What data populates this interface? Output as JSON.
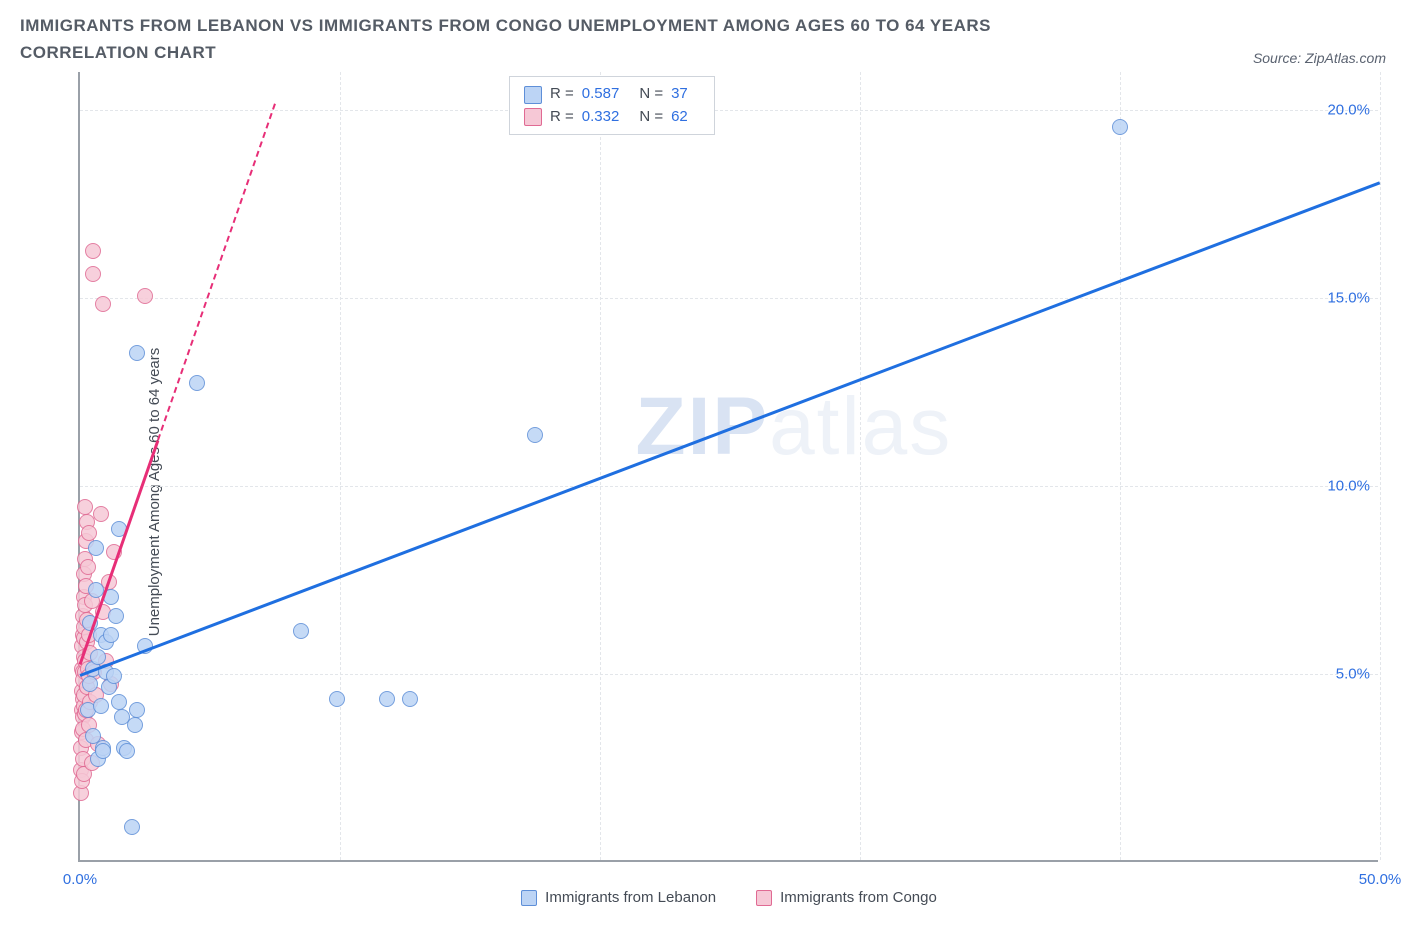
{
  "title": "IMMIGRANTS FROM LEBANON VS IMMIGRANTS FROM CONGO UNEMPLOYMENT AMONG AGES 60 TO 64 YEARS CORRELATION CHART",
  "source_label": "Source: ZipAtlas.com",
  "watermark": {
    "zip": "ZIP",
    "atlas": "atlas"
  },
  "chart": {
    "type": "scatter",
    "ylabel": "Unemployment Among Ages 60 to 64 years",
    "xlim": [
      0,
      50
    ],
    "ylim": [
      0,
      21
    ],
    "xticks": [
      0,
      50
    ],
    "xtick_labels": [
      "0.0%",
      "50.0%"
    ],
    "xgrid_at": [
      10,
      20,
      30,
      40,
      50
    ],
    "yticks": [
      5,
      10,
      15,
      20
    ],
    "ytick_labels": [
      "5.0%",
      "10.0%",
      "15.0%",
      "20.0%"
    ],
    "background_color": "#ffffff",
    "grid_color": "#e3e6ea",
    "axis_color": "#9aa0a8",
    "marker_radius": 8,
    "marker_stroke_width": 1.3,
    "series": [
      {
        "name": "Immigrants from Lebanon",
        "fill": "#bcd4f5",
        "stroke": "#5e8fd8",
        "R": "0.587",
        "N": "37",
        "trend": {
          "x1": 0,
          "y1": 5.0,
          "x2": 50,
          "y2": 18.1,
          "solid_to_x": 50,
          "color": "#1f6fe0"
        },
        "points": [
          [
            0.3,
            4.0
          ],
          [
            0.4,
            4.7
          ],
          [
            0.4,
            6.3
          ],
          [
            0.5,
            5.1
          ],
          [
            0.5,
            3.3
          ],
          [
            0.6,
            7.2
          ],
          [
            0.6,
            8.3
          ],
          [
            0.7,
            5.4
          ],
          [
            0.7,
            2.7
          ],
          [
            0.8,
            4.1
          ],
          [
            0.8,
            6.0
          ],
          [
            0.9,
            3.0
          ],
          [
            0.9,
            2.9
          ],
          [
            1.0,
            5.8
          ],
          [
            1.0,
            5.0
          ],
          [
            1.1,
            4.6
          ],
          [
            1.2,
            6.0
          ],
          [
            1.2,
            7.0
          ],
          [
            1.3,
            4.9
          ],
          [
            1.4,
            6.5
          ],
          [
            1.5,
            8.8
          ],
          [
            1.5,
            4.2
          ],
          [
            1.6,
            3.8
          ],
          [
            1.7,
            3.0
          ],
          [
            1.8,
            2.9
          ],
          [
            2.0,
            0.9
          ],
          [
            2.1,
            3.6
          ],
          [
            2.2,
            4.0
          ],
          [
            2.2,
            13.5
          ],
          [
            2.5,
            5.7
          ],
          [
            4.5,
            12.7
          ],
          [
            8.5,
            6.1
          ],
          [
            9.9,
            4.3
          ],
          [
            11.8,
            4.3
          ],
          [
            12.7,
            4.3
          ],
          [
            17.5,
            11.3
          ],
          [
            40.0,
            19.5
          ]
        ]
      },
      {
        "name": "Immigrants from Congo",
        "fill": "#f6c8d6",
        "stroke": "#e06a93",
        "R": "0.332",
        "N": "62",
        "trend": {
          "x1": 0,
          "y1": 5.3,
          "x2": 7.5,
          "y2": 20.2,
          "solid_to_x": 3.0,
          "color": "#e72e77"
        },
        "points": [
          [
            0.05,
            1.8
          ],
          [
            0.05,
            2.4
          ],
          [
            0.05,
            3.0
          ],
          [
            0.07,
            2.1
          ],
          [
            0.07,
            3.4
          ],
          [
            0.08,
            4.0
          ],
          [
            0.08,
            4.5
          ],
          [
            0.09,
            5.1
          ],
          [
            0.09,
            5.7
          ],
          [
            0.1,
            3.8
          ],
          [
            0.1,
            4.3
          ],
          [
            0.11,
            2.7
          ],
          [
            0.11,
            5.0
          ],
          [
            0.12,
            6.0
          ],
          [
            0.12,
            4.8
          ],
          [
            0.13,
            3.5
          ],
          [
            0.13,
            6.5
          ],
          [
            0.14,
            5.4
          ],
          [
            0.14,
            7.0
          ],
          [
            0.15,
            4.1
          ],
          [
            0.15,
            5.9
          ],
          [
            0.16,
            7.6
          ],
          [
            0.16,
            4.4
          ],
          [
            0.17,
            6.2
          ],
          [
            0.17,
            2.3
          ],
          [
            0.18,
            5.0
          ],
          [
            0.18,
            8.0
          ],
          [
            0.19,
            3.9
          ],
          [
            0.19,
            6.8
          ],
          [
            0.2,
            9.4
          ],
          [
            0.2,
            5.3
          ],
          [
            0.22,
            4.0
          ],
          [
            0.22,
            7.3
          ],
          [
            0.24,
            8.5
          ],
          [
            0.24,
            3.2
          ],
          [
            0.26,
            5.8
          ],
          [
            0.26,
            6.4
          ],
          [
            0.28,
            4.6
          ],
          [
            0.28,
            9.0
          ],
          [
            0.3,
            5.1
          ],
          [
            0.3,
            7.8
          ],
          [
            0.33,
            4.9
          ],
          [
            0.33,
            6.0
          ],
          [
            0.36,
            3.6
          ],
          [
            0.36,
            8.7
          ],
          [
            0.4,
            5.5
          ],
          [
            0.4,
            4.2
          ],
          [
            0.45,
            6.9
          ],
          [
            0.45,
            2.6
          ],
          [
            0.5,
            15.6
          ],
          [
            0.5,
            16.2
          ],
          [
            0.55,
            5.0
          ],
          [
            0.6,
            4.4
          ],
          [
            0.7,
            3.1
          ],
          [
            0.8,
            9.2
          ],
          [
            0.9,
            6.6
          ],
          [
            1.0,
            5.3
          ],
          [
            1.1,
            7.4
          ],
          [
            1.2,
            4.7
          ],
          [
            1.3,
            8.2
          ],
          [
            2.5,
            15.0
          ],
          [
            0.9,
            14.8
          ]
        ]
      }
    ],
    "stats_legend": {
      "R_label": "R =",
      "N_label": "N ="
    },
    "bottom_legend": [
      {
        "label": "Immigrants from Lebanon",
        "fill": "#bcd4f5",
        "stroke": "#5e8fd8"
      },
      {
        "label": "Immigrants from Congo",
        "fill": "#f6c8d6",
        "stroke": "#e06a93"
      }
    ]
  }
}
